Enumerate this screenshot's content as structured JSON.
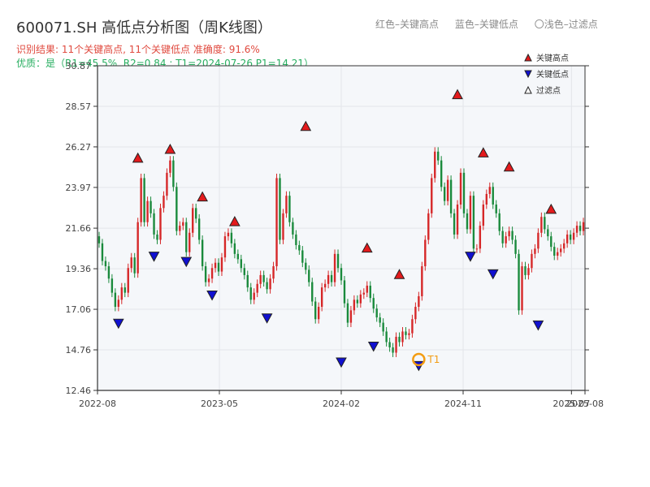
{
  "title": "600071.SH 高低点分析图（周K线图）",
  "top_legend": {
    "red": "红色–关键高点",
    "blue": "蓝色–关键低点",
    "light": "〇浅色–过滤点"
  },
  "subtitle_result": "识别结果: 11个关键高点, 11个关键低点   准确度: 91.6%",
  "subtitle_quality": "优质：是（R1=45.5%, R2=0.84 ; T1=2024-07-26 P1=14.21）",
  "colors": {
    "up": "#d62728",
    "down": "#1a8a3c",
    "high": "#e31a1c",
    "low": "#1010d0",
    "t1": "#f39c12",
    "plot_bg": "#f5f7fa"
  },
  "chart_data": {
    "type": "candlestick",
    "title": "600071.SH 高低点分析图（周K线图）",
    "x_ticks": [
      "2022-08",
      "2023-05",
      "2024-02",
      "2024-11",
      "2025-07",
      "2025-08"
    ],
    "y_ticks": [
      "12.46",
      "14.76",
      "17.06",
      "19.36",
      "21.66",
      "23.97",
      "26.27",
      "28.57",
      "30.87"
    ],
    "ylim": [
      12.46,
      30.87
    ],
    "period_start": "2022-08",
    "period_end": "2025-08",
    "grid": true,
    "legend_position": "top-right",
    "legend": [
      "关键高点",
      "关键低点",
      "过滤点"
    ],
    "closes": [
      20.8,
      19.8,
      19.5,
      18.8,
      18.0,
      17.2,
      17.6,
      18.3,
      18.0,
      19.4,
      20.0,
      19.1,
      22.0,
      24.5,
      22.0,
      23.2,
      22.5,
      21.3,
      21.0,
      22.8,
      23.5,
      24.8,
      25.5,
      24.0,
      21.5,
      21.8,
      22.0,
      20.3,
      21.4,
      22.8,
      22.2,
      21.0,
      19.5,
      18.6,
      18.8,
      19.4,
      19.7,
      19.2,
      20.0,
      21.2,
      21.4,
      20.8,
      20.2,
      19.9,
      19.4,
      19.0,
      18.3,
      17.6,
      18.0,
      18.5,
      19.0,
      18.6,
      18.2,
      18.8,
      19.5,
      24.5,
      21.0,
      22.5,
      23.5,
      22.0,
      21.3,
      20.7,
      20.4,
      19.7,
      19.3,
      18.6,
      17.5,
      16.5,
      17.2,
      18.3,
      18.5,
      19.0,
      18.6,
      20.2,
      19.4,
      18.7,
      17.4,
      16.3,
      17.0,
      17.6,
      17.4,
      17.9,
      18.0,
      18.4,
      17.7,
      17.1,
      16.6,
      16.3,
      15.8,
      15.2,
      14.9,
      14.6,
      15.5,
      15.2,
      15.8,
      15.6,
      15.7,
      16.5,
      17.2,
      17.8,
      19.5,
      21.0,
      22.5,
      24.5,
      26.0,
      25.5,
      24.0,
      23.2,
      24.4,
      22.5,
      21.3,
      23.0,
      24.8,
      22.5,
      21.6,
      23.5,
      20.5,
      20.5,
      21.8,
      23.0,
      23.6,
      24.0,
      23.0,
      22.5,
      21.5,
      20.8,
      21.2,
      21.5,
      21.0,
      20.2,
      17.0,
      19.5,
      19.0,
      19.4,
      20.2,
      20.5,
      21.4,
      22.3,
      21.6,
      21.2,
      20.6,
      20.1,
      20.3,
      20.5,
      20.8,
      21.3,
      21.0,
      21.4,
      21.8,
      21.5,
      22.0
    ],
    "key_highs": [
      {
        "bar": 12,
        "price": 25.4
      },
      {
        "bar": 22,
        "price": 25.9
      },
      {
        "bar": 32,
        "price": 23.2
      },
      {
        "bar": 42,
        "price": 21.8
      },
      {
        "bar": 64,
        "price": 27.2
      },
      {
        "bar": 83,
        "price": 20.3
      },
      {
        "bar": 93,
        "price": 18.8
      },
      {
        "bar": 111,
        "price": 29.0
      },
      {
        "bar": 119,
        "price": 25.7
      },
      {
        "bar": 127,
        "price": 24.9
      },
      {
        "bar": 140,
        "price": 22.5
      }
    ],
    "key_lows": [
      {
        "bar": 6,
        "price": 16.5
      },
      {
        "bar": 17,
        "price": 20.3
      },
      {
        "bar": 27,
        "price": 20.0
      },
      {
        "bar": 35,
        "price": 18.1
      },
      {
        "bar": 52,
        "price": 16.8
      },
      {
        "bar": 75,
        "price": 14.3
      },
      {
        "bar": 85,
        "price": 15.2
      },
      {
        "bar": 99,
        "price": 14.1
      },
      {
        "bar": 115,
        "price": 20.3
      },
      {
        "bar": 122,
        "price": 19.3
      },
      {
        "bar": 136,
        "price": 16.4
      }
    ],
    "annotation": {
      "label": "T1",
      "bar": 99,
      "price": 14.21
    }
  }
}
